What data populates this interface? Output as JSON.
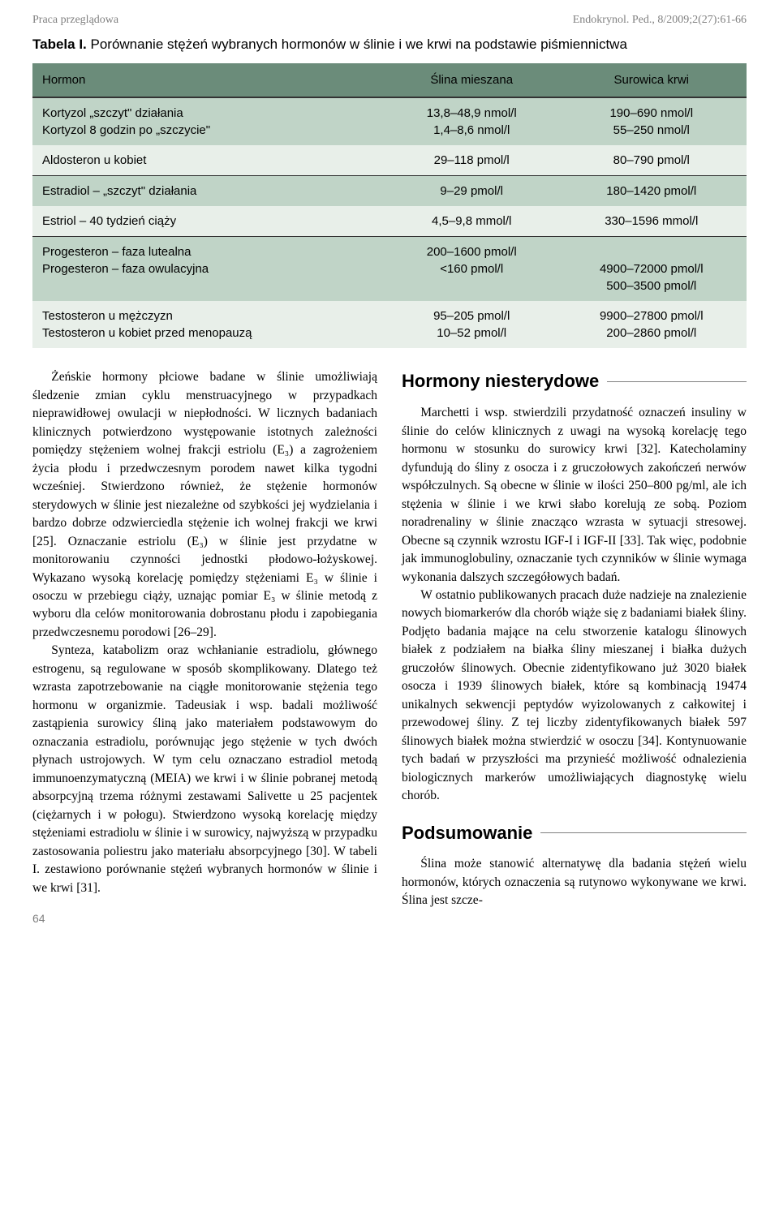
{
  "header": {
    "left": "Praca przeglądowa",
    "right": "Endokrynol. Ped., 8/2009;2(27):61-66"
  },
  "table": {
    "title_prefix": "Tabela I.",
    "title_text": " Porównanie stężeń wybranych hormonów w ślinie i we krwi na podstawie piśmiennictwa",
    "columns": [
      "Hormon",
      "Ślina mieszana",
      "Surowica krwi"
    ],
    "rows": [
      {
        "cells": [
          "Kortyzol „szczyt\" działania\nKortyzol 8 godzin po „szczycie\"",
          "13,8–48,9 nmol/l\n1,4–8,6 nmol/l",
          "190–690 nmol/l\n55–250 nmol/l"
        ],
        "sep": false
      },
      {
        "cells": [
          "Aldosteron u kobiet",
          "29–118 pmol/l",
          "80–790 pmol/l"
        ],
        "sep": true
      },
      {
        "cells": [
          "Estradiol – „szczyt\" działania",
          "9–29 pmol/l",
          "180–1420 pmol/l"
        ],
        "sep": false
      },
      {
        "cells": [
          "Estriol – 40 tydzień ciąży",
          "4,5–9,8 mmol/l",
          "330–1596 mmol/l"
        ],
        "sep": true
      },
      {
        "cells": [
          "Progesteron – faza lutealna\nProgesteron – faza owulacyjna",
          "200–1600 pmol/l\n<160 pmol/l",
          "\n4900–72000 pmol/l\n500–3500 pmol/l"
        ],
        "sep": false
      },
      {
        "cells": [
          "Testosteron u mężczyzn\nTestosteron u kobiet przed menopauzą",
          "95–205 pmol/l\n10–52 pmol/l",
          "9900–27800 pmol/l\n200–2860 pmol/l"
        ],
        "sep": false
      }
    ],
    "header_bg": "#6b8c7a",
    "odd_bg": "#c0d4c7",
    "even_bg": "#e8efe9"
  },
  "body": {
    "para1": "Żeńskie hormony płciowe badane w ślinie umożliwiają śledzenie zmian cyklu menstruacyjnego w przypadkach nieprawidłowej owulacji w niepłodności. W licznych badaniach klinicznych potwierdzono występowanie istotnych zależności pomiędzy stężeniem wolnej frakcji estriolu (E₃) a zagrożeniem życia płodu i przedwczesnym porodem nawet kilka tygodni wcześniej. Stwierdzono również, że stężenie hormonów sterydowych w ślinie jest niezależne od szybkości jej wydzielania i bardzo dobrze odzwierciedla stężenie ich wolnej frakcji we krwi [25]. Oznaczanie estriolu (E₃) w ślinie jest przydatne w monitorowaniu czynności jednostki płodowo-łożyskowej. Wykazano wysoką korelację pomiędzy stężeniami E₃ w ślinie i osoczu w przebiegu ciąży, uznając pomiar E₃ w ślinie metodą z wyboru dla celów monitorowania dobrostanu płodu i zapobiegania przedwczesnemu porodowi [26–29].",
    "para2": "Synteza, katabolizm oraz wchłanianie estradiolu, głównego estrogenu, są regulowane w sposób skomplikowany. Dlatego też wzrasta zapotrzebowanie na ciągłe monitorowanie stężenia tego hormonu w organizmie. Tadeusiak i wsp. badali możliwość zastąpienia surowicy śliną jako materiałem podstawowym do oznaczania estradiolu, porównując jego stężenie w tych dwóch płynach ustrojowych. W tym celu oznaczano estradiol metodą immunoenzymatyczną (MEIA) we krwi i w ślinie pobranej metodą absorpcyjną trzema różnymi zestawami Salivette u 25 pacjentek (ciężarnych i w połogu). Stwierdzono wysoką korelację między stężeniami estradiolu w ślinie i w surowicy, najwyższą w przypadku zastosowania poliestru jako materiału absorpcyjnego [30]. W tabeli I. zestawiono porównanie stężeń wybranych hormonów w ślinie i we krwi [31].",
    "heading1": "Hormony niesterydowe",
    "para3": "Marchetti i wsp. stwierdzili przydatność oznaczeń insuliny w ślinie do celów klinicznych z uwagi na wysoką korelację tego hormonu w stosunku do surowicy krwi [32]. Katecholaminy dyfundują do śliny z osocza i z gruczołowych zakończeń nerwów współczulnych. Są obecne w ślinie w ilości 250–800 pg/ml, ale ich stężenia w ślinie i we krwi słabo korelują ze sobą. Poziom noradrenaliny w ślinie znacząco wzrasta w sytuacji stresowej. Obecne są czynnik wzrostu IGF-I i IGF-II [33]. Tak więc, podobnie jak immunoglobuliny, oznaczanie tych czynników w ślinie wymaga wykonania dalszych szczegółowych badań.",
    "para4": "W ostatnio publikowanych pracach duże nadzieje na znalezienie nowych biomarkerów dla chorób wiąże się z badaniami białek śliny. Podjęto badania mające na celu stworzenie katalogu ślinowych białek z podziałem na białka śliny mieszanej i białka dużych gruczołów ślinowych. Obecnie zidentyfikowano już 3020 białek osocza i 1939 ślinowych białek, które są kombinacją 19474 unikalnych sekwencji peptydów wyizolowanych z całkowitej i przewodowej śliny. Z tej liczby zidentyfikowanych białek 597 ślinowych białek można stwierdzić w osoczu [34]. Kontynuowanie tych badań w przyszłości ma przynieść możliwość odnalezienia biologicznych markerów umożliwiających diagnostykę wielu chorób.",
    "heading2": "Podsumowanie",
    "para5": "Ślina może stanowić alternatywę dla badania stężeń wielu hormonów, których oznaczenia są rutynowo wykonywane we krwi. Ślina jest szcze-"
  },
  "page_number": "64"
}
